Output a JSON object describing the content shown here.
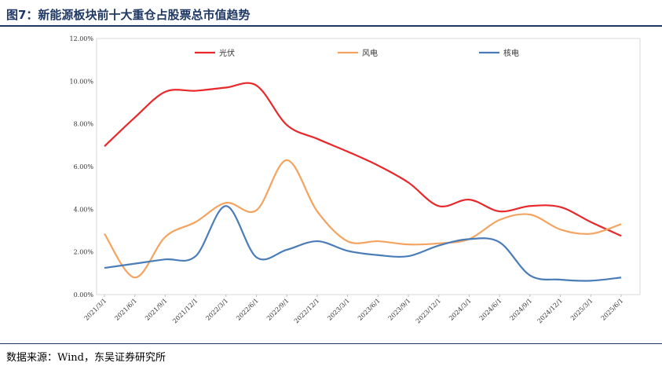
{
  "title": "图7：新能源板块前十大重仓占股票总市值趋势",
  "source": "数据来源：Wind，东吴证券研究所",
  "chart_data": {
    "type": "line",
    "categories": [
      "2021/3/1",
      "2021/6/1",
      "2021/9/1",
      "2021/12/1",
      "2022/3/1",
      "2022/6/1",
      "2022/9/1",
      "2022/12/1",
      "2023/3/1",
      "2023/6/1",
      "2023/9/1",
      "2023/12/1",
      "2024/3/1",
      "2024/6/1",
      "2024/9/1",
      "2024/12/1",
      "2025/3/1",
      "2025/6/1"
    ],
    "y_ticks": [
      "0.00%",
      "2.00%",
      "4.00%",
      "6.00%",
      "8.00%",
      "10.00%",
      "12.00%"
    ],
    "ylim": [
      0,
      12
    ],
    "legend_position": "top",
    "grid": false,
    "series": [
      {
        "name": "光伏",
        "color": "#e8282b",
        "values": [
          6.95,
          8.3,
          9.5,
          9.55,
          9.7,
          9.8,
          7.95,
          7.3,
          6.7,
          6.05,
          5.25,
          4.15,
          4.45,
          3.9,
          4.15,
          4.1,
          3.4,
          2.75
        ]
      },
      {
        "name": "风电",
        "color": "#f4a460",
        "values": [
          2.85,
          0.8,
          2.7,
          3.4,
          4.3,
          3.95,
          6.3,
          3.9,
          2.5,
          2.5,
          2.35,
          2.4,
          2.6,
          3.5,
          3.75,
          3.05,
          2.85,
          3.3
        ]
      },
      {
        "name": "核电",
        "color": "#4a7db8",
        "values": [
          1.25,
          1.45,
          1.65,
          1.8,
          4.15,
          1.75,
          2.1,
          2.5,
          2.05,
          1.85,
          1.8,
          2.3,
          2.6,
          2.45,
          0.9,
          0.7,
          0.65,
          0.8
        ]
      }
    ]
  }
}
